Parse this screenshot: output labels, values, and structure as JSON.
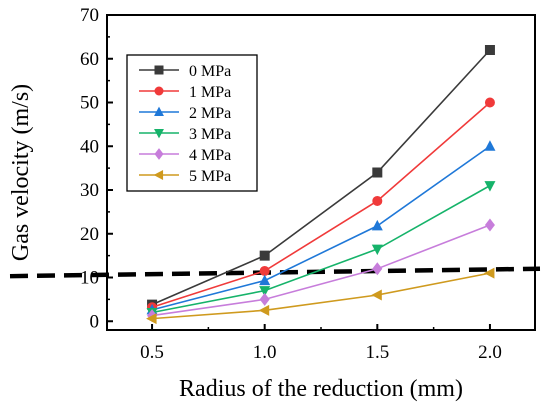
{
  "chart_data": {
    "type": "line",
    "xlabel": "Radius of the reduction (mm)",
    "ylabel": "Gas velocity (m/s)",
    "xlim": [
      0.3,
      2.2
    ],
    "ylim": [
      -2,
      70
    ],
    "x_ticks": [
      "0.5",
      "1.0",
      "1.5",
      "2.0"
    ],
    "y_ticks": [
      "0",
      "10",
      "20",
      "30",
      "40",
      "50",
      "60",
      "70"
    ],
    "x": [
      0.5,
      1.0,
      1.5,
      2.0
    ],
    "series": [
      {
        "name": "0 MPa",
        "values": [
          3.8,
          15,
          34,
          62
        ],
        "color": "#3a3a3a",
        "marker": "square"
      },
      {
        "name": "1 MPa",
        "values": [
          3.2,
          11.5,
          27.5,
          50
        ],
        "color": "#f03a3a",
        "marker": "circle"
      },
      {
        "name": "2 MPa",
        "values": [
          2.6,
          9.3,
          21.8,
          40
        ],
        "color": "#1f78d8",
        "marker": "triangle-up"
      },
      {
        "name": "3 MPa",
        "values": [
          2.0,
          7.0,
          16.5,
          31
        ],
        "color": "#16b36a",
        "marker": "triangle-down"
      },
      {
        "name": "4 MPa",
        "values": [
          1.3,
          5.0,
          12,
          22
        ],
        "color": "#c77ddb",
        "marker": "diamond"
      },
      {
        "name": "5 MPa",
        "values": [
          0.6,
          2.5,
          6,
          11
        ],
        "color": "#cf9a1e",
        "marker": "triangle-left"
      }
    ],
    "reference_line": {
      "style": "dashed",
      "color": "#000000",
      "x": [
        0.3,
        2.2
      ],
      "y": [
        10.3,
        12.0
      ]
    },
    "legend_position": "top-left",
    "grid": false
  }
}
